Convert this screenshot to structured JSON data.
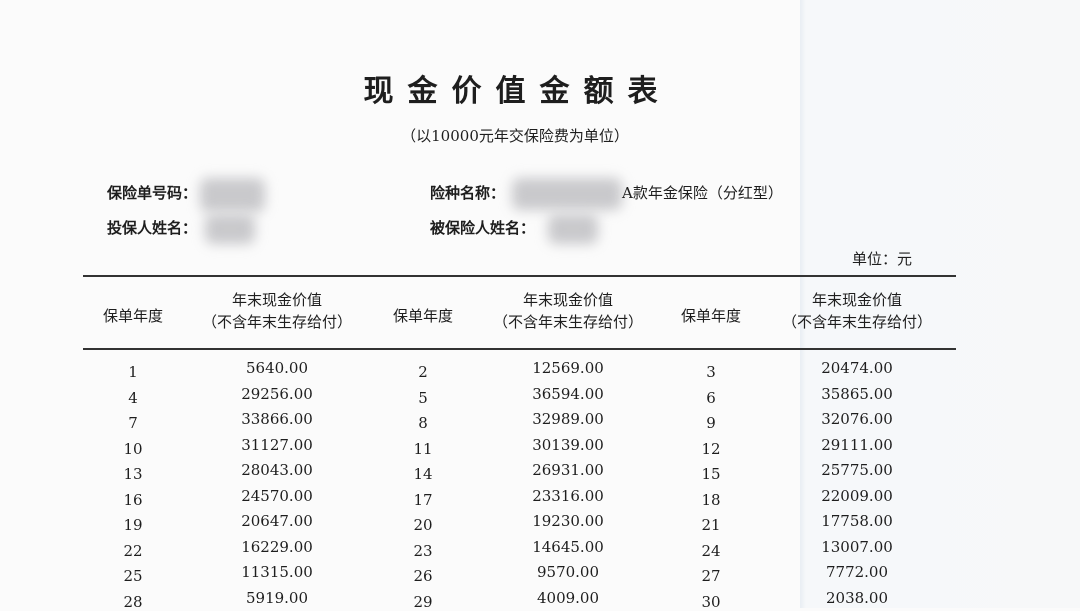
{
  "title": "现金价值金额表",
  "subtitle": "（以10000元年交保险费为单位）",
  "info": {
    "policy_no_label": "保险单号码：",
    "product_label": "险种名称：",
    "product_value_visible": "A款年金保险（分红型）",
    "holder_label": "投保人姓名：",
    "insured_label": "被保险人姓名："
  },
  "unit": "单位：元",
  "table": {
    "headers": [
      {
        "line1": "保单年度",
        "line2": ""
      },
      {
        "line1": "年末现金价值",
        "line2": "（不含年末生存给付）"
      },
      {
        "line1": "保单年度",
        "line2": ""
      },
      {
        "line1": "年末现金价值",
        "line2": "（不含年末生存给付）"
      },
      {
        "line1": "保单年度",
        "line2": ""
      },
      {
        "line1": "年末现金价值",
        "line2": "（不含年末生存给付）"
      }
    ],
    "rows": [
      [
        "1",
        "5640.00",
        "2",
        "12569.00",
        "3",
        "20474.00"
      ],
      [
        "4",
        "29256.00",
        "5",
        "36594.00",
        "6",
        "35865.00"
      ],
      [
        "7",
        "33866.00",
        "8",
        "32989.00",
        "9",
        "32076.00"
      ],
      [
        "10",
        "31127.00",
        "11",
        "30139.00",
        "12",
        "29111.00"
      ],
      [
        "13",
        "28043.00",
        "14",
        "26931.00",
        "15",
        "25775.00"
      ],
      [
        "16",
        "24570.00",
        "17",
        "23316.00",
        "18",
        "22009.00"
      ],
      [
        "19",
        "20647.00",
        "20",
        "19230.00",
        "21",
        "17758.00"
      ],
      [
        "22",
        "16229.00",
        "23",
        "14645.00",
        "24",
        "13007.00"
      ],
      [
        "25",
        "11315.00",
        "26",
        "9570.00",
        "27",
        "7772.00"
      ],
      [
        "28",
        "5919.00",
        "29",
        "4009.00",
        "30",
        "2038.00"
      ]
    ]
  }
}
